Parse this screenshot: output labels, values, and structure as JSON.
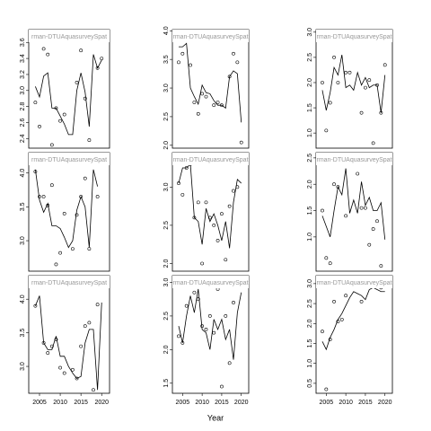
{
  "chart_data": {
    "type": "facet",
    "x_label": "Year",
    "x": [
      2004,
      2005,
      2006,
      2007,
      2008,
      2009,
      2010,
      2011,
      2012,
      2013,
      2014,
      2015,
      2016,
      2017,
      2018,
      2019,
      2020
    ],
    "xlim": [
      2002.4,
      2021.9
    ],
    "xticks": [
      2005,
      2010,
      2015,
      2020
    ],
    "panels": [
      {
        "strip": "rman-DTUAquasurveySpat",
        "ylim": [
          2.28,
          3.76
        ],
        "yticks": [
          2.4,
          2.6,
          2.8,
          {
            "value": 3,
            "label": "3.0"
          },
          3.2,
          3.4,
          3.6
        ],
        "values": [
          2.85,
          2.55,
          3.52,
          3.45,
          2.32,
          2.78,
          2.62,
          2.7,
          null,
          null,
          3.1,
          3.5,
          2.9,
          2.38,
          3.7,
          3.28,
          3.4
        ],
        "fit": [
          3.05,
          2.92,
          3.18,
          3.22,
          2.78,
          2.78,
          2.68,
          2.58,
          2.45,
          2.45,
          3.0,
          3.22,
          2.98,
          2.55,
          3.45,
          3.28,
          3.38
        ]
      },
      {
        "strip": "rman-DTUAquasurveySpat",
        "ylim": [
          1.95,
          4.02
        ],
        "yticks": [
          {
            "value": 2,
            "label": "2.0"
          },
          2.5,
          {
            "value": 3,
            "label": "3.0"
          },
          3.5,
          {
            "value": 4,
            "label": "4.0"
          }
        ],
        "values": [
          3.45,
          3.6,
          3.92,
          3.4,
          2.75,
          2.55,
          2.9,
          2.85,
          null,
          2.7,
          2.75,
          2.7,
          null,
          3.2,
          3.6,
          3.45,
          2.05
        ],
        "fit": [
          3.72,
          3.72,
          3.78,
          3.0,
          2.85,
          2.72,
          3.05,
          2.92,
          2.9,
          2.78,
          2.7,
          2.7,
          2.65,
          3.2,
          3.3,
          3.25,
          2.4
        ]
      },
      {
        "strip": "rman-DTUAquasurveySpat",
        "ylim": [
          0.7,
          3.05
        ],
        "yticks": [
          {
            "value": 1,
            "label": "1.0"
          },
          1.5,
          {
            "value": 2,
            "label": "2.0"
          },
          2.5,
          {
            "value": 3,
            "label": "3.0"
          }
        ],
        "values": [
          2.0,
          1.05,
          1.6,
          2.5,
          2.0,
          2.95,
          2.2,
          2.2,
          null,
          null,
          1.4,
          1.9,
          2.05,
          0.8,
          1.95,
          1.4,
          2.35
        ],
        "fit": [
          1.85,
          1.45,
          1.8,
          2.3,
          2.15,
          2.55,
          1.9,
          1.95,
          1.85,
          2.2,
          1.95,
          2.1,
          1.9,
          1.95,
          1.95,
          1.4,
          2.15
        ]
      },
      {
        "strip": "rman-DTUAquasurveySpat",
        "ylim": [
          2.55,
          4.3
        ],
        "yticks": [
          {
            "value": 3,
            "label": "3.0"
          },
          3.5,
          {
            "value": 4,
            "label": "4.0"
          }
        ],
        "values": [
          4.02,
          3.65,
          3.65,
          3.52,
          3.82,
          2.65,
          2.82,
          3.4,
          null,
          2.88,
          3.38,
          3.65,
          3.92,
          2.88,
          4.25,
          3.65,
          null
        ],
        "fit": [
          4.05,
          3.6,
          3.42,
          3.55,
          3.22,
          3.22,
          3.18,
          3.05,
          2.9,
          3.0,
          3.45,
          3.65,
          3.5,
          2.9,
          4.05,
          3.8,
          null
        ]
      },
      {
        "strip": "rman-DTUAquasurveySpat",
        "ylim": [
          1.9,
          3.45
        ],
        "yticks": [
          {
            "value": 2,
            "label": "2.0"
          },
          2.5,
          {
            "value": 3,
            "label": "3.0"
          }
        ],
        "values": [
          3.05,
          2.9,
          3.25,
          3.3,
          2.6,
          2.8,
          2.0,
          2.8,
          2.6,
          2.5,
          2.3,
          2.65,
          2.05,
          2.75,
          2.95,
          3.0,
          null
        ],
        "fit": [
          3.05,
          3.25,
          3.25,
          3.3,
          2.6,
          2.55,
          2.25,
          2.72,
          2.55,
          2.65,
          2.5,
          2.3,
          2.55,
          2.2,
          2.8,
          3.1,
          3.05
        ]
      },
      {
        "strip": "rman-DTUAquasurveySpat",
        "ylim": [
          0.35,
          2.6
        ],
        "yticks": [
          {
            "value": 1,
            "label": "1.0"
          },
          1.5,
          {
            "value": 2,
            "label": "2.0"
          },
          2.5
        ],
        "values": [
          1.5,
          0.6,
          0.5,
          2.0,
          1.95,
          2.55,
          1.4,
          null,
          null,
          2.2,
          1.55,
          1.55,
          0.85,
          1.15,
          1.3,
          0.45,
          null
        ],
        "fit": [
          1.4,
          1.2,
          1.0,
          1.5,
          1.95,
          1.8,
          2.3,
          1.45,
          1.7,
          1.45,
          2.05,
          1.6,
          1.75,
          1.5,
          1.5,
          1.65,
          0.95
        ]
      },
      {
        "strip": "rman-DTUAquasurveySpat",
        "ylim": [
          2.6,
          4.35
        ],
        "yticks": [
          {
            "value": 3,
            "label": "3.0"
          },
          3.5,
          {
            "value": 4,
            "label": "4.0"
          }
        ],
        "values": [
          3.9,
          4.25,
          3.35,
          3.2,
          3.3,
          3.4,
          2.98,
          2.9,
          null,
          2.95,
          2.82,
          3.3,
          3.6,
          3.65,
          2.65,
          3.92,
          null
        ],
        "fit": [
          3.9,
          4.05,
          3.35,
          3.25,
          3.25,
          3.45,
          3.15,
          3.15,
          3.0,
          2.9,
          2.82,
          2.85,
          3.35,
          3.55,
          3.55,
          2.65,
          3.95
        ]
      },
      {
        "strip": "rman-DTUAquasurveySpat",
        "ylim": [
          1.35,
          3.1
        ],
        "yticks": [
          1.5,
          {
            "value": 2,
            "label": "2.0"
          },
          2.5,
          {
            "value": 3,
            "label": "3.0"
          }
        ],
        "values": [
          2.2,
          2.1,
          2.65,
          3.05,
          2.85,
          2.75,
          2.35,
          2.3,
          2.5,
          2.25,
          2.9,
          1.45,
          2.5,
          1.8,
          2.7,
          2.95,
          null
        ],
        "fit": [
          2.35,
          2.1,
          2.5,
          2.8,
          2.55,
          2.9,
          2.3,
          2.25,
          2.0,
          2.45,
          2.3,
          2.45,
          2.15,
          2.3,
          1.85,
          2.55,
          2.85
        ]
      },
      {
        "strip": "rman-DTUAquasurveySpat",
        "ylim": [
          0.25,
          3.2
        ],
        "yticks": [
          0.5,
          {
            "value": 1,
            "label": "1.0"
          },
          1.5,
          {
            "value": 2,
            "label": "2.0"
          },
          2.5,
          {
            "value": 3,
            "label": "3.0"
          }
        ],
        "values": [
          1.8,
          0.35,
          1.6,
          2.55,
          2.05,
          2.1,
          2.7,
          2.95,
          null,
          null,
          2.55,
          3.1,
          3.0,
          3.1,
          3.05,
          2.9,
          3.05
        ],
        "fit": [
          1.55,
          1.35,
          1.65,
          1.85,
          2.1,
          2.25,
          2.45,
          2.65,
          2.8,
          2.75,
          2.7,
          2.6,
          2.85,
          2.9,
          2.85,
          2.8,
          2.8
        ]
      }
    ]
  }
}
